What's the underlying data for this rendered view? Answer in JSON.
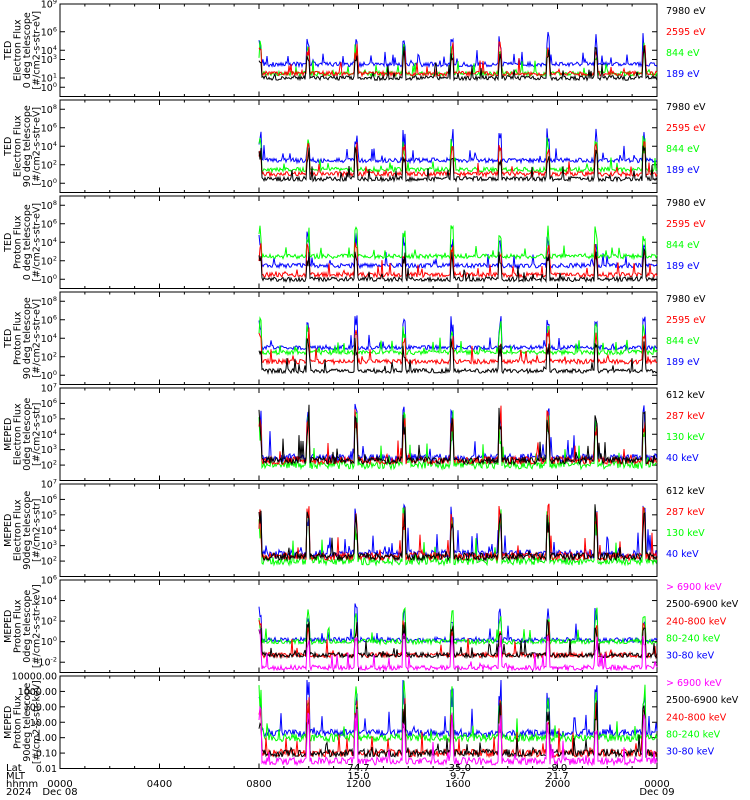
{
  "chart_data": [
    {
      "type": "line",
      "ylabel": [
        "TED",
        "Electron Flux",
        "0 deg telescope",
        "[#/cm2-s-str-eV]"
      ],
      "yscale": "log",
      "ylim": [
        0.1,
        1000000000.0
      ],
      "yticks": [
        {
          "value": 1000000000.0,
          "base": "10",
          "exp": "9"
        },
        {
          "value": 1000000.0,
          "base": "10",
          "exp": "6"
        },
        {
          "value": 10000.0,
          "base": "10",
          "exp": "4"
        },
        {
          "value": 1000.0,
          "base": "10",
          "exp": "3"
        },
        {
          "value": 10.0,
          "base": "10",
          "exp": "1"
        },
        {
          "value": 1.0,
          "base": "10",
          "exp": "0"
        }
      ],
      "series": [
        {
          "name": "7980 eV",
          "color": "#000000",
          "level": 10
        },
        {
          "name": "2595 eV",
          "color": "#ff0000",
          "level": 30
        },
        {
          "name": "844 eV",
          "color": "#00ff00",
          "level": 30
        },
        {
          "name": "189 eV",
          "color": "#0000ff",
          "level": 300
        }
      ]
    },
    {
      "type": "line",
      "ylabel": [
        "TED",
        "Electron Flux",
        "90 deg telescope",
        "[#/cm2-s-str-eV]"
      ],
      "yscale": "log",
      "ylim": [
        0.1,
        1000000000.0
      ],
      "yticks": [
        {
          "value": 100000000.0,
          "base": "10",
          "exp": "8"
        },
        {
          "value": 1000000.0,
          "base": "10",
          "exp": "6"
        },
        {
          "value": 10000.0,
          "base": "10",
          "exp": "4"
        },
        {
          "value": 100.0,
          "base": "10",
          "exp": "2"
        },
        {
          "value": 1.0,
          "base": "10",
          "exp": "0"
        }
      ],
      "series": [
        {
          "name": "7980 eV",
          "color": "#000000",
          "level": 3
        },
        {
          "name": "2595 eV",
          "color": "#ff0000",
          "level": 10
        },
        {
          "name": "844 eV",
          "color": "#00ff00",
          "level": 30
        },
        {
          "name": "189 eV",
          "color": "#0000ff",
          "level": 300
        }
      ]
    },
    {
      "type": "line",
      "ylabel": [
        "TED",
        "Proton Flux",
        "0 deg telescope",
        "[#/cm2-s-str-eV]"
      ],
      "yscale": "log",
      "ylim": [
        0.1,
        1000000000.0
      ],
      "yticks": [
        {
          "value": 100000000.0,
          "base": "10",
          "exp": "8"
        },
        {
          "value": 1000000.0,
          "base": "10",
          "exp": "6"
        },
        {
          "value": 10000.0,
          "base": "10",
          "exp": "4"
        },
        {
          "value": 100.0,
          "base": "10",
          "exp": "2"
        },
        {
          "value": 1.0,
          "base": "10",
          "exp": "0"
        }
      ],
      "series": [
        {
          "name": "7980 eV",
          "color": "#000000",
          "level": 1
        },
        {
          "name": "2595 eV",
          "color": "#ff0000",
          "level": 3
        },
        {
          "name": "844 eV",
          "color": "#00ff00",
          "level": 300
        },
        {
          "name": "189 eV",
          "color": "#0000ff",
          "level": 30
        }
      ]
    },
    {
      "type": "line",
      "ylabel": [
        "TED",
        "Proton Flux",
        "90 deg telescope",
        "[#/cm2-s-str-eV]"
      ],
      "yscale": "log",
      "ylim": [
        0.1,
        1000000000.0
      ],
      "yticks": [
        {
          "value": 100000000.0,
          "base": "10",
          "exp": "8"
        },
        {
          "value": 1000000.0,
          "base": "10",
          "exp": "6"
        },
        {
          "value": 10000.0,
          "base": "10",
          "exp": "4"
        },
        {
          "value": 100.0,
          "base": "10",
          "exp": "2"
        },
        {
          "value": 1.0,
          "base": "10",
          "exp": "0"
        }
      ],
      "series": [
        {
          "name": "7980 eV",
          "color": "#000000",
          "level": 3
        },
        {
          "name": "2595 eV",
          "color": "#ff0000",
          "level": 30
        },
        {
          "name": "844 eV",
          "color": "#00ff00",
          "level": 300
        },
        {
          "name": "189 eV",
          "color": "#0000ff",
          "level": 1000
        }
      ]
    },
    {
      "type": "line",
      "ylabel": [
        "MEPED",
        "Electron Flux",
        "0deg telescope",
        "[#/cm2-s-str]"
      ],
      "yscale": "log",
      "ylim": [
        10.0,
        10000000.0
      ],
      "yticks": [
        {
          "value": 10000000.0,
          "base": "10",
          "exp": "7"
        },
        {
          "value": 1000000.0,
          "base": "10",
          "exp": "6"
        },
        {
          "value": 100000.0,
          "base": "10",
          "exp": "5"
        },
        {
          "value": 10000.0,
          "base": "10",
          "exp": "4"
        },
        {
          "value": 1000.0,
          "base": "10",
          "exp": "3"
        },
        {
          "value": 100.0,
          "base": "10",
          "exp": "2"
        }
      ],
      "series": [
        {
          "name": "612 keV",
          "color": "#000000",
          "level": 200
        },
        {
          "name": "287 keV",
          "color": "#ff0000",
          "level": 200
        },
        {
          "name": "130 keV",
          "color": "#00ff00",
          "level": 100
        },
        {
          "name": "40 keV",
          "color": "#0000ff",
          "level": 300
        }
      ]
    },
    {
      "type": "line",
      "ylabel": [
        "MEPED",
        "Electron Flux",
        "90deg telescope",
        "[#/cm2-s-str]"
      ],
      "yscale": "log",
      "ylim": [
        10.0,
        10000000.0
      ],
      "yticks": [
        {
          "value": 10000000.0,
          "base": "10",
          "exp": "7"
        },
        {
          "value": 1000000.0,
          "base": "10",
          "exp": "6"
        },
        {
          "value": 100000.0,
          "base": "10",
          "exp": "5"
        },
        {
          "value": 10000.0,
          "base": "10",
          "exp": "4"
        },
        {
          "value": 1000.0,
          "base": "10",
          "exp": "3"
        },
        {
          "value": 100.0,
          "base": "10",
          "exp": "2"
        }
      ],
      "series": [
        {
          "name": "612 keV",
          "color": "#000000",
          "level": 200
        },
        {
          "name": "287 keV",
          "color": "#ff0000",
          "level": 200
        },
        {
          "name": "130 keV",
          "color": "#00ff00",
          "level": 100
        },
        {
          "name": "40 keV",
          "color": "#0000ff",
          "level": 300
        }
      ]
    },
    {
      "type": "line",
      "ylabel": [
        "MEPED",
        "Proton Flux",
        "0deg telescope",
        "[#/cm2-s-str-keV]"
      ],
      "yscale": "log",
      "ylim": [
        0.001,
        1000000.0
      ],
      "yticks": [
        {
          "value": 1000000.0,
          "base": "10",
          "exp": "6"
        },
        {
          "value": 10000.0,
          "base": "10",
          "exp": "4"
        },
        {
          "value": 100.0,
          "base": "10",
          "exp": "2"
        },
        {
          "value": 1.0,
          "base": "10",
          "exp": "0"
        },
        {
          "value": 0.01,
          "base": "10",
          "exp": "-2"
        }
      ],
      "series": [
        {
          "name": "> 6900 keV",
          "color": "#ff00ff",
          "level": 0.003
        },
        {
          "name": "2500-6900 keV",
          "color": "#000000",
          "level": 0.05
        },
        {
          "name": "240-800 keV",
          "color": "#ff0000",
          "level": 0.05
        },
        {
          "name": "80-240 keV",
          "color": "#00ff00",
          "level": 1
        },
        {
          "name": "30-80 keV",
          "color": "#0000ff",
          "level": 1.5
        }
      ]
    },
    {
      "type": "line",
      "ylabel": [
        "MEPED",
        "Proton Flux",
        "90deg telescope",
        "[#/cm2-s-str-keV]"
      ],
      "yscale": "log",
      "ylim": [
        0.01,
        10000
      ],
      "yticks": [
        {
          "value": 10000,
          "label": "10000.00"
        },
        {
          "value": 1000,
          "label": "1000.00"
        },
        {
          "value": 100,
          "label": "100.00"
        },
        {
          "value": 10,
          "label": "10.00"
        },
        {
          "value": 1,
          "label": "1.00"
        },
        {
          "value": 0.1,
          "label": "0.10"
        },
        {
          "value": 0.01,
          "label": "0.01"
        }
      ],
      "series": [
        {
          "name": "> 6900 keV",
          "color": "#ff00ff",
          "level": 0.03
        },
        {
          "name": "2500-6900 keV",
          "color": "#000000",
          "level": 0.1
        },
        {
          "name": "240-800 keV",
          "color": "#ff0000",
          "level": 0.1
        },
        {
          "name": "80-240 keV",
          "color": "#00ff00",
          "level": 1
        },
        {
          "name": "30-80 keV",
          "color": "#0000ff",
          "level": 2
        }
      ]
    }
  ],
  "time_axis": {
    "range_hours": [
      0,
      24
    ],
    "data_start_hours": 8.0,
    "data_end_hours": 24.0,
    "ticks": [
      {
        "hours": 0,
        "label": "0000"
      },
      {
        "hours": 4,
        "label": "0400"
      },
      {
        "hours": 8,
        "label": "0800"
      },
      {
        "hours": 12,
        "label": "1200"
      },
      {
        "hours": 16,
        "label": "1600"
      },
      {
        "hours": 20,
        "label": "2000"
      },
      {
        "hours": 24,
        "label": "0000"
      }
    ],
    "date_labels": [
      {
        "hours": 0,
        "label": "Dec 08"
      },
      {
        "hours": 24,
        "label": "Dec 09"
      }
    ]
  },
  "footer": {
    "row_labels": [
      "Lat",
      "MLT",
      "hhmm",
      "2024"
    ],
    "orbit_columns": [
      {
        "hours": 12,
        "lat": "74.7",
        "mlt": "15.0"
      },
      {
        "hours": 16,
        "lat": "-35.0",
        "mlt": "9.7"
      },
      {
        "hours": 20,
        "lat": "-8.0",
        "mlt": "21.7"
      }
    ]
  }
}
